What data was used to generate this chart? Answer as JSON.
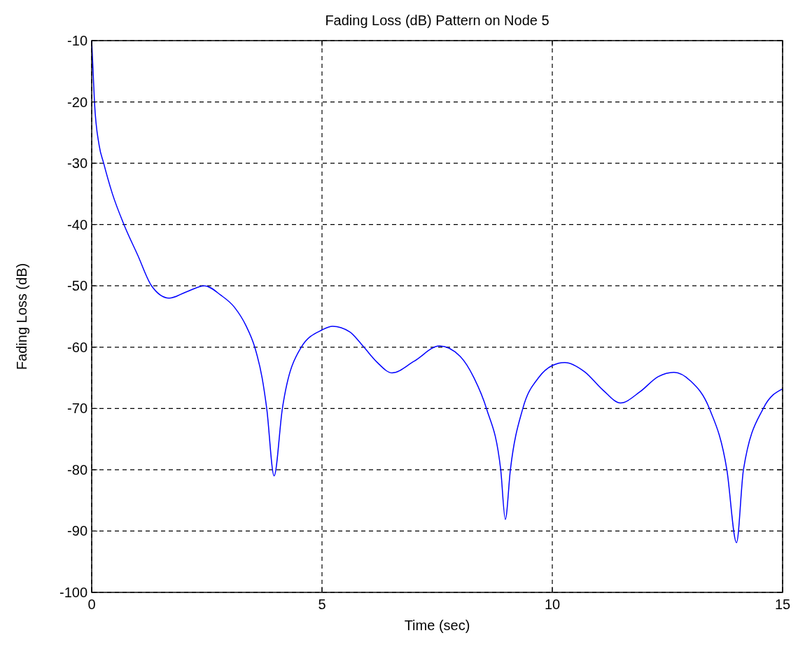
{
  "chart_data": {
    "type": "line",
    "title": "Fading Loss (dB) Pattern on Node 5",
    "xlabel": "Time (sec)",
    "ylabel": "Fading Loss (dB)",
    "xlim": [
      0,
      15
    ],
    "xticks": [
      0,
      5,
      10,
      15
    ],
    "ylim": [
      -100,
      -10
    ],
    "yticks": [
      -100,
      -90,
      -80,
      -70,
      -60,
      -50,
      -40,
      -30,
      -20,
      -10
    ],
    "grid": true,
    "line_style": "solid",
    "marker": "none",
    "series": [
      {
        "color": "#0000ff",
        "x": [
          0,
          0.03,
          0.06,
          0.16,
          0.26,
          0.45,
          0.7,
          1.0,
          1.3,
          1.68,
          2.05,
          2.45,
          2.8,
          3.1,
          3.35,
          3.54,
          3.7,
          3.8,
          3.96,
          4.14,
          4.55,
          5.0,
          5.23,
          5.6,
          5.91,
          6.2,
          6.52,
          7.0,
          7.55,
          8.0,
          8.3,
          8.57,
          8.88,
          8.98,
          9.09,
          9.36,
          9.7,
          10.0,
          10.27,
          10.7,
          11.1,
          11.48,
          11.9,
          12.3,
          12.64,
          13.0,
          13.41,
          13.79,
          14.0,
          14.15,
          14.58,
          15
        ],
        "values": [
          -10,
          -15,
          -20,
          -27,
          -30,
          -35,
          -40,
          -45,
          -50,
          -52,
          -51,
          -50,
          -51.5,
          -53.5,
          -56.5,
          -60,
          -65,
          -70,
          -81,
          -70,
          -60,
          -57.2,
          -56.6,
          -57.5,
          -60,
          -62.5,
          -64.2,
          -62.3,
          -59.8,
          -61.5,
          -65,
          -70,
          -80,
          -88.1,
          -80,
          -70,
          -65,
          -63,
          -62.5,
          -64,
          -67,
          -69.1,
          -67.3,
          -64.8,
          -64.1,
          -65.5,
          -70,
          -80,
          -91.9,
          -80,
          -70,
          -66.8
        ]
      }
    ]
  }
}
